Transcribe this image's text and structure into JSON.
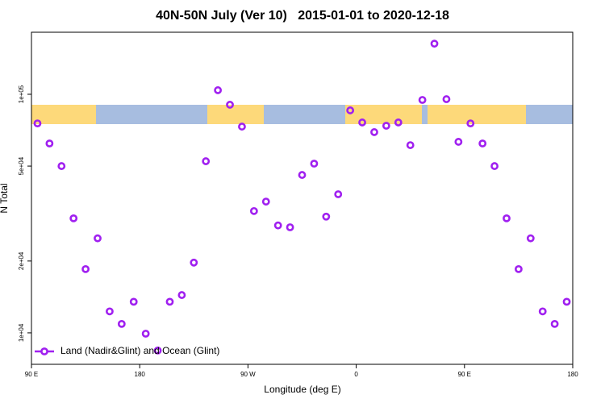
{
  "chart_data": {
    "type": "scatter",
    "title": "40N-50N July (Ver 10)   2015-01-01 to 2020-12-18",
    "xlabel": "Longitude (deg E)",
    "ylabel": "N Total",
    "x": [
      95,
      105,
      115,
      125,
      135,
      145,
      155,
      165,
      175,
      185,
      195,
      205,
      215,
      225,
      235,
      245,
      255,
      265,
      275,
      285,
      295,
      305,
      315,
      325,
      335,
      345,
      355,
      365,
      375,
      385,
      395,
      405,
      415,
      425,
      435,
      445,
      455,
      465,
      475,
      485,
      495,
      505,
      515,
      525,
      535
    ],
    "series": [
      {
        "name": "Land (Nadir&Glint) and Ocean (Glint)",
        "color": "#a020f0",
        "values": [
          75500,
          62200,
          50000,
          30200,
          18500,
          24900,
          12300,
          10900,
          13500,
          9920,
          8430,
          13500,
          14400,
          19700,
          52400,
          104000,
          90400,
          73200,
          32400,
          35500,
          28200,
          27700,
          45900,
          51200,
          30700,
          38100,
          85600,
          76200,
          69400,
          73800,
          76200,
          61200,
          94700,
          163000,
          95400,
          63200,
          75500,
          62200,
          50000,
          30200,
          18500,
          24900,
          12300,
          10900,
          13500
        ]
      }
    ],
    "xlim": [
      90,
      540
    ],
    "xticks": [
      {
        "value": 90,
        "label": "90 E"
      },
      180,
      {
        "value": 270,
        "label": "90 W"
      },
      {
        "value": 360,
        "label": "0"
      },
      {
        "value": 450,
        "label": "90 E"
      },
      {
        "value": 540,
        "label": "180"
      }
    ],
    "ylim": [
      7380,
      182000
    ],
    "ylog": true,
    "yticks": [
      {
        "value": 10000,
        "label": "1e+04"
      },
      {
        "value": 20000,
        "label": "2e+04"
      },
      {
        "value": 50000,
        "label": "5e+04"
      },
      {
        "value": 100000,
        "label": "1e+05"
      }
    ],
    "legend": "bottomleft"
  }
}
